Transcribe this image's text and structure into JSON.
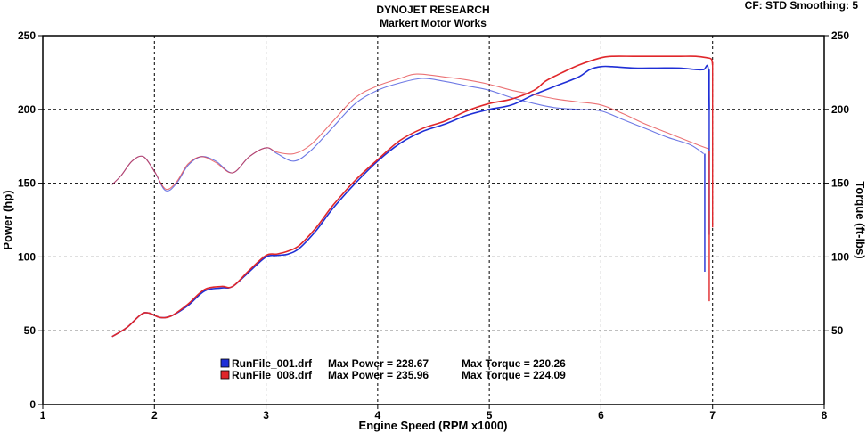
{
  "header": {
    "corner_info": "CF: STD  Smoothing: 5"
  },
  "chart_data": {
    "type": "line",
    "title": "DYNOJET RESEARCH",
    "subtitle": "Markert Motor Works",
    "xlabel": "Engine Speed (RPM x1000)",
    "ylabel": "Power (hp)",
    "y2label": "Torque (ft-lbs)",
    "xlim": [
      1,
      8
    ],
    "ylim": [
      0,
      250
    ],
    "y2lim": [
      0,
      250
    ],
    "xticks": [
      1,
      2,
      3,
      4,
      5,
      6,
      7,
      8
    ],
    "yticks": [
      0,
      50,
      100,
      150,
      200,
      250
    ],
    "y2ticks": [
      50,
      100,
      150,
      200,
      250
    ],
    "grid": true,
    "series": [
      {
        "name": "RunFile_001.drf",
        "metric": "power",
        "color": "#1f2fd6",
        "x": [
          1.62,
          1.75,
          1.88,
          1.95,
          2.05,
          2.15,
          2.3,
          2.45,
          2.6,
          2.7,
          2.85,
          3.0,
          3.1,
          3.2,
          3.3,
          3.45,
          3.6,
          3.8,
          4.0,
          4.2,
          4.4,
          4.6,
          4.8,
          5.0,
          5.2,
          5.4,
          5.6,
          5.8,
          5.9,
          6.0,
          6.1,
          6.3,
          6.5,
          6.7,
          6.85,
          6.92,
          6.96,
          6.97
        ],
        "values": [
          46,
          52,
          61,
          62,
          59,
          60,
          67,
          77,
          79,
          80,
          90,
          100,
          101,
          102,
          106,
          118,
          133,
          150,
          165,
          177,
          185,
          190,
          196,
          200,
          203,
          210,
          216,
          222,
          227,
          229,
          229,
          228,
          228,
          228,
          227,
          227,
          228,
          200
        ]
      },
      {
        "name": "RunFile_001.drf",
        "metric": "torque",
        "color": "#1f2fd6",
        "x": [
          1.62,
          1.7,
          1.8,
          1.9,
          2.0,
          2.1,
          2.2,
          2.3,
          2.42,
          2.55,
          2.7,
          2.85,
          3.0,
          3.1,
          3.25,
          3.4,
          3.6,
          3.8,
          4.0,
          4.2,
          4.4,
          4.6,
          4.8,
          5.0,
          5.2,
          5.4,
          5.6,
          5.8,
          6.0,
          6.2,
          6.4,
          6.6,
          6.8,
          6.92
        ],
        "values": [
          149,
          155,
          165,
          168,
          158,
          145,
          150,
          162,
          168,
          165,
          157,
          168,
          174,
          170,
          165,
          172,
          188,
          204,
          213,
          218,
          221,
          219,
          216,
          213,
          208,
          204,
          201,
          200,
          199,
          193,
          187,
          181,
          176,
          170
        ]
      },
      {
        "name": "RunFile_008.drf",
        "metric": "power",
        "color": "#e0272b",
        "x": [
          1.62,
          1.75,
          1.88,
          1.95,
          2.05,
          2.15,
          2.3,
          2.45,
          2.6,
          2.7,
          2.85,
          3.0,
          3.1,
          3.2,
          3.3,
          3.45,
          3.6,
          3.8,
          4.0,
          4.2,
          4.4,
          4.6,
          4.8,
          5.0,
          5.2,
          5.4,
          5.5,
          5.6,
          5.8,
          6.0,
          6.1,
          6.3,
          6.5,
          6.7,
          6.85,
          6.95,
          6.99,
          7.0
        ],
        "values": [
          46,
          52,
          61,
          62,
          59,
          60,
          68,
          78,
          80,
          80,
          91,
          101,
          102,
          104,
          108,
          120,
          135,
          152,
          166,
          179,
          187,
          192,
          199,
          204,
          207,
          213,
          219,
          223,
          230,
          235,
          236,
          236,
          236,
          236,
          236,
          235,
          234,
          230
        ]
      },
      {
        "name": "RunFile_008.drf",
        "metric": "torque",
        "color": "#e0272b",
        "x": [
          1.62,
          1.7,
          1.8,
          1.9,
          2.0,
          2.1,
          2.2,
          2.3,
          2.42,
          2.55,
          2.7,
          2.85,
          3.0,
          3.1,
          3.25,
          3.4,
          3.6,
          3.8,
          4.0,
          4.2,
          4.35,
          4.6,
          4.8,
          5.0,
          5.2,
          5.4,
          5.6,
          5.8,
          6.0,
          6.2,
          6.4,
          6.6,
          6.8,
          6.97
        ],
        "values": [
          149,
          155,
          165,
          168,
          158,
          146,
          151,
          163,
          168,
          164,
          157,
          168,
          174,
          171,
          170,
          176,
          192,
          208,
          216,
          221,
          224,
          222,
          220,
          217,
          213,
          210,
          207,
          205,
          203,
          197,
          190,
          184,
          178,
          173
        ]
      }
    ],
    "legend": [
      {
        "file": "RunFile_001.drf",
        "max_power_label": "Max Power = 228.67",
        "max_torque_label": "Max Torque = 220.26",
        "color": "#1f2fd6"
      },
      {
        "file": "RunFile_008.drf",
        "max_power_label": "Max Power = 235.96",
        "max_torque_label": "Max Torque = 224.09",
        "color": "#e0272b"
      }
    ]
  }
}
